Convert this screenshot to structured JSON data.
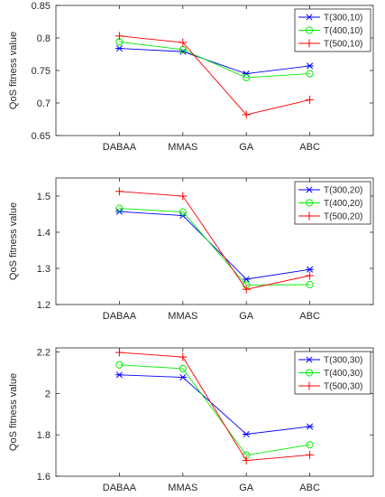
{
  "colors": {
    "T(300,n)": "#0000ff",
    "T(400,n)": "#00ee00",
    "T(500,n)": "#ff0000",
    "axis": "#262626"
  },
  "chart_data": [
    {
      "type": "line",
      "categories": [
        "DABAA",
        "MMAS",
        "GA",
        "ABC"
      ],
      "ylabel": "QoS fitness value",
      "ylim": [
        0.65,
        0.85
      ],
      "yticks": [
        0.65,
        0.7,
        0.75,
        0.8,
        0.85
      ],
      "ytick_labels": [
        "0.65",
        "0.7",
        "0.75",
        "0.8",
        "0.85"
      ],
      "grid": false,
      "legend_position": "top-right",
      "series": [
        {
          "name": "T(300,10)",
          "marker": "asterisk",
          "color": "#0000ff",
          "values": [
            0.784,
            0.779,
            0.745,
            0.757
          ]
        },
        {
          "name": "T(400,10)",
          "marker": "circle",
          "color": "#00ee00",
          "values": [
            0.794,
            0.782,
            0.739,
            0.745
          ]
        },
        {
          "name": "T(500,10)",
          "marker": "plus",
          "color": "#ff0000",
          "values": [
            0.803,
            0.793,
            0.682,
            0.705
          ]
        }
      ]
    },
    {
      "type": "line",
      "categories": [
        "DABAA",
        "MMAS",
        "GA",
        "ABC"
      ],
      "ylabel": "QoS fitness value",
      "ylim": [
        1.2,
        1.55
      ],
      "yticks": [
        1.2,
        1.3,
        1.4,
        1.5
      ],
      "ytick_labels": [
        "1.2",
        "1.3",
        "1.4",
        "1.5"
      ],
      "grid": false,
      "legend_position": "top-right",
      "series": [
        {
          "name": "T(300,20)",
          "marker": "asterisk",
          "color": "#0000ff",
          "values": [
            1.457,
            1.446,
            1.27,
            1.297
          ]
        },
        {
          "name": "T(400,20)",
          "marker": "circle",
          "color": "#00ee00",
          "values": [
            1.466,
            1.456,
            1.254,
            1.255
          ]
        },
        {
          "name": "T(500,20)",
          "marker": "plus",
          "color": "#ff0000",
          "values": [
            1.513,
            1.5,
            1.242,
            1.28
          ]
        }
      ]
    },
    {
      "type": "line",
      "categories": [
        "DABAA",
        "MMAS",
        "GA",
        "ABC"
      ],
      "ylabel": "QoS fitness value",
      "ylim": [
        1.6,
        2.22
      ],
      "yticks": [
        1.6,
        1.8,
        2.0,
        2.2
      ],
      "ytick_labels": [
        "1.6",
        "1.8",
        "2",
        "2.2"
      ],
      "grid": false,
      "legend_position": "top-right",
      "series": [
        {
          "name": "T(300,30)",
          "marker": "asterisk",
          "color": "#0000ff",
          "values": [
            2.09,
            2.078,
            1.803,
            1.84
          ]
        },
        {
          "name": "T(400,30)",
          "marker": "circle",
          "color": "#00ee00",
          "values": [
            2.138,
            2.12,
            1.702,
            1.752
          ]
        },
        {
          "name": "T(500,30)",
          "marker": "plus",
          "color": "#ff0000",
          "values": [
            2.198,
            2.176,
            1.676,
            1.703
          ]
        }
      ]
    }
  ]
}
